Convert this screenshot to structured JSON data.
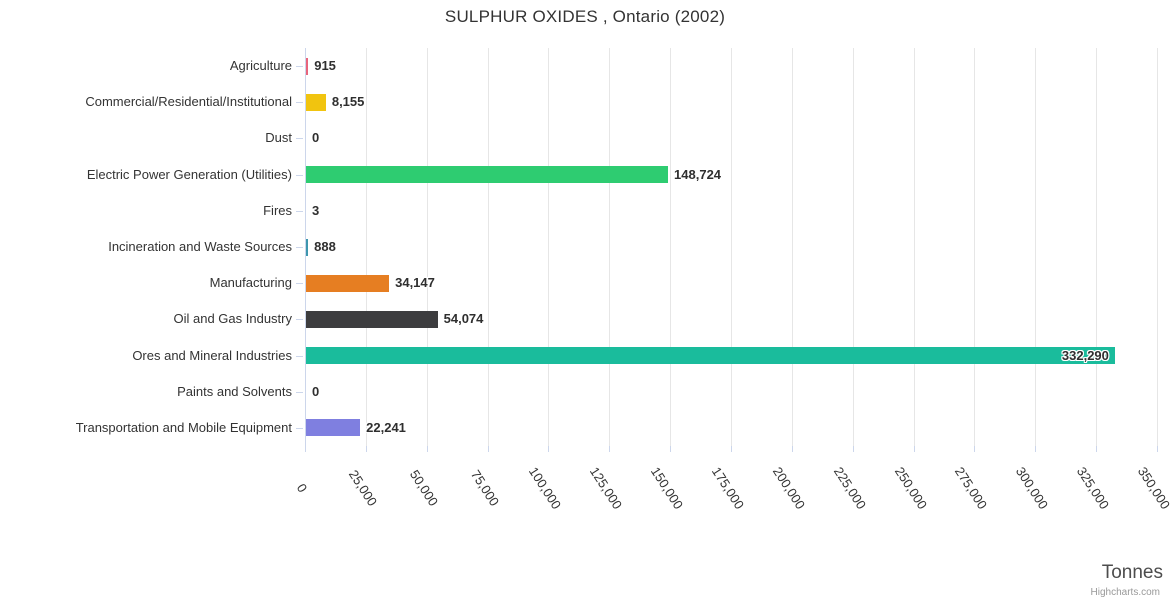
{
  "title": "SULPHUR OXIDES , Ontario (2002)",
  "footer": {
    "unit_label": "Tonnes",
    "credit": "Highcharts.com"
  },
  "colors": {
    "grid": "#e6e6e6",
    "axis_line": "#ccd6eb",
    "title_text": "#333333",
    "label_text": "#333333",
    "value_text": "#2f2f2f",
    "unit_text": "#4d4d4d",
    "credit_text": "#999999"
  },
  "chart_data": {
    "type": "bar",
    "orientation": "horizontal",
    "title": "SULPHUR OXIDES , Ontario (2002)",
    "xlabel": "Tonnes",
    "ylabel": "",
    "xlim": [
      0,
      350000
    ],
    "grid": true,
    "legend": false,
    "categories": [
      "Agriculture",
      "Commercial/Residential/Institutional",
      "Dust",
      "Electric Power Generation (Utilities)",
      "Fires",
      "Incineration and Waste Sources",
      "Manufacturing",
      "Oil and Gas Industry",
      "Ores and Mineral Industries",
      "Paints and Solvents",
      "Transportation and Mobile Equipment"
    ],
    "values": [
      915,
      8155,
      0,
      148724,
      3,
      888,
      34147,
      54074,
      332290,
      0,
      22241
    ],
    "value_labels": [
      "915",
      "8,155",
      "0",
      "148,724",
      "3",
      "888",
      "34,147",
      "54,074",
      "332,290",
      "0",
      "22,241"
    ],
    "bar_colors": [
      "#e8647c",
      "#f1c40f",
      null,
      "#2ecc71",
      null,
      "#3d96ae",
      "#e67e22",
      "#3d3d3f",
      "#1abc9c",
      null,
      "#7f7fe0"
    ],
    "x_tick_values": [
      0,
      25000,
      50000,
      75000,
      100000,
      125000,
      150000,
      175000,
      200000,
      225000,
      250000,
      275000,
      300000,
      325000,
      350000
    ],
    "x_tick_labels": [
      "0",
      "25,000",
      "50,000",
      "75,000",
      "100,000",
      "125,000",
      "150,000",
      "175,000",
      "200,000",
      "225,000",
      "250,000",
      "275,000",
      "300,000",
      "325,000",
      "350,000"
    ]
  }
}
